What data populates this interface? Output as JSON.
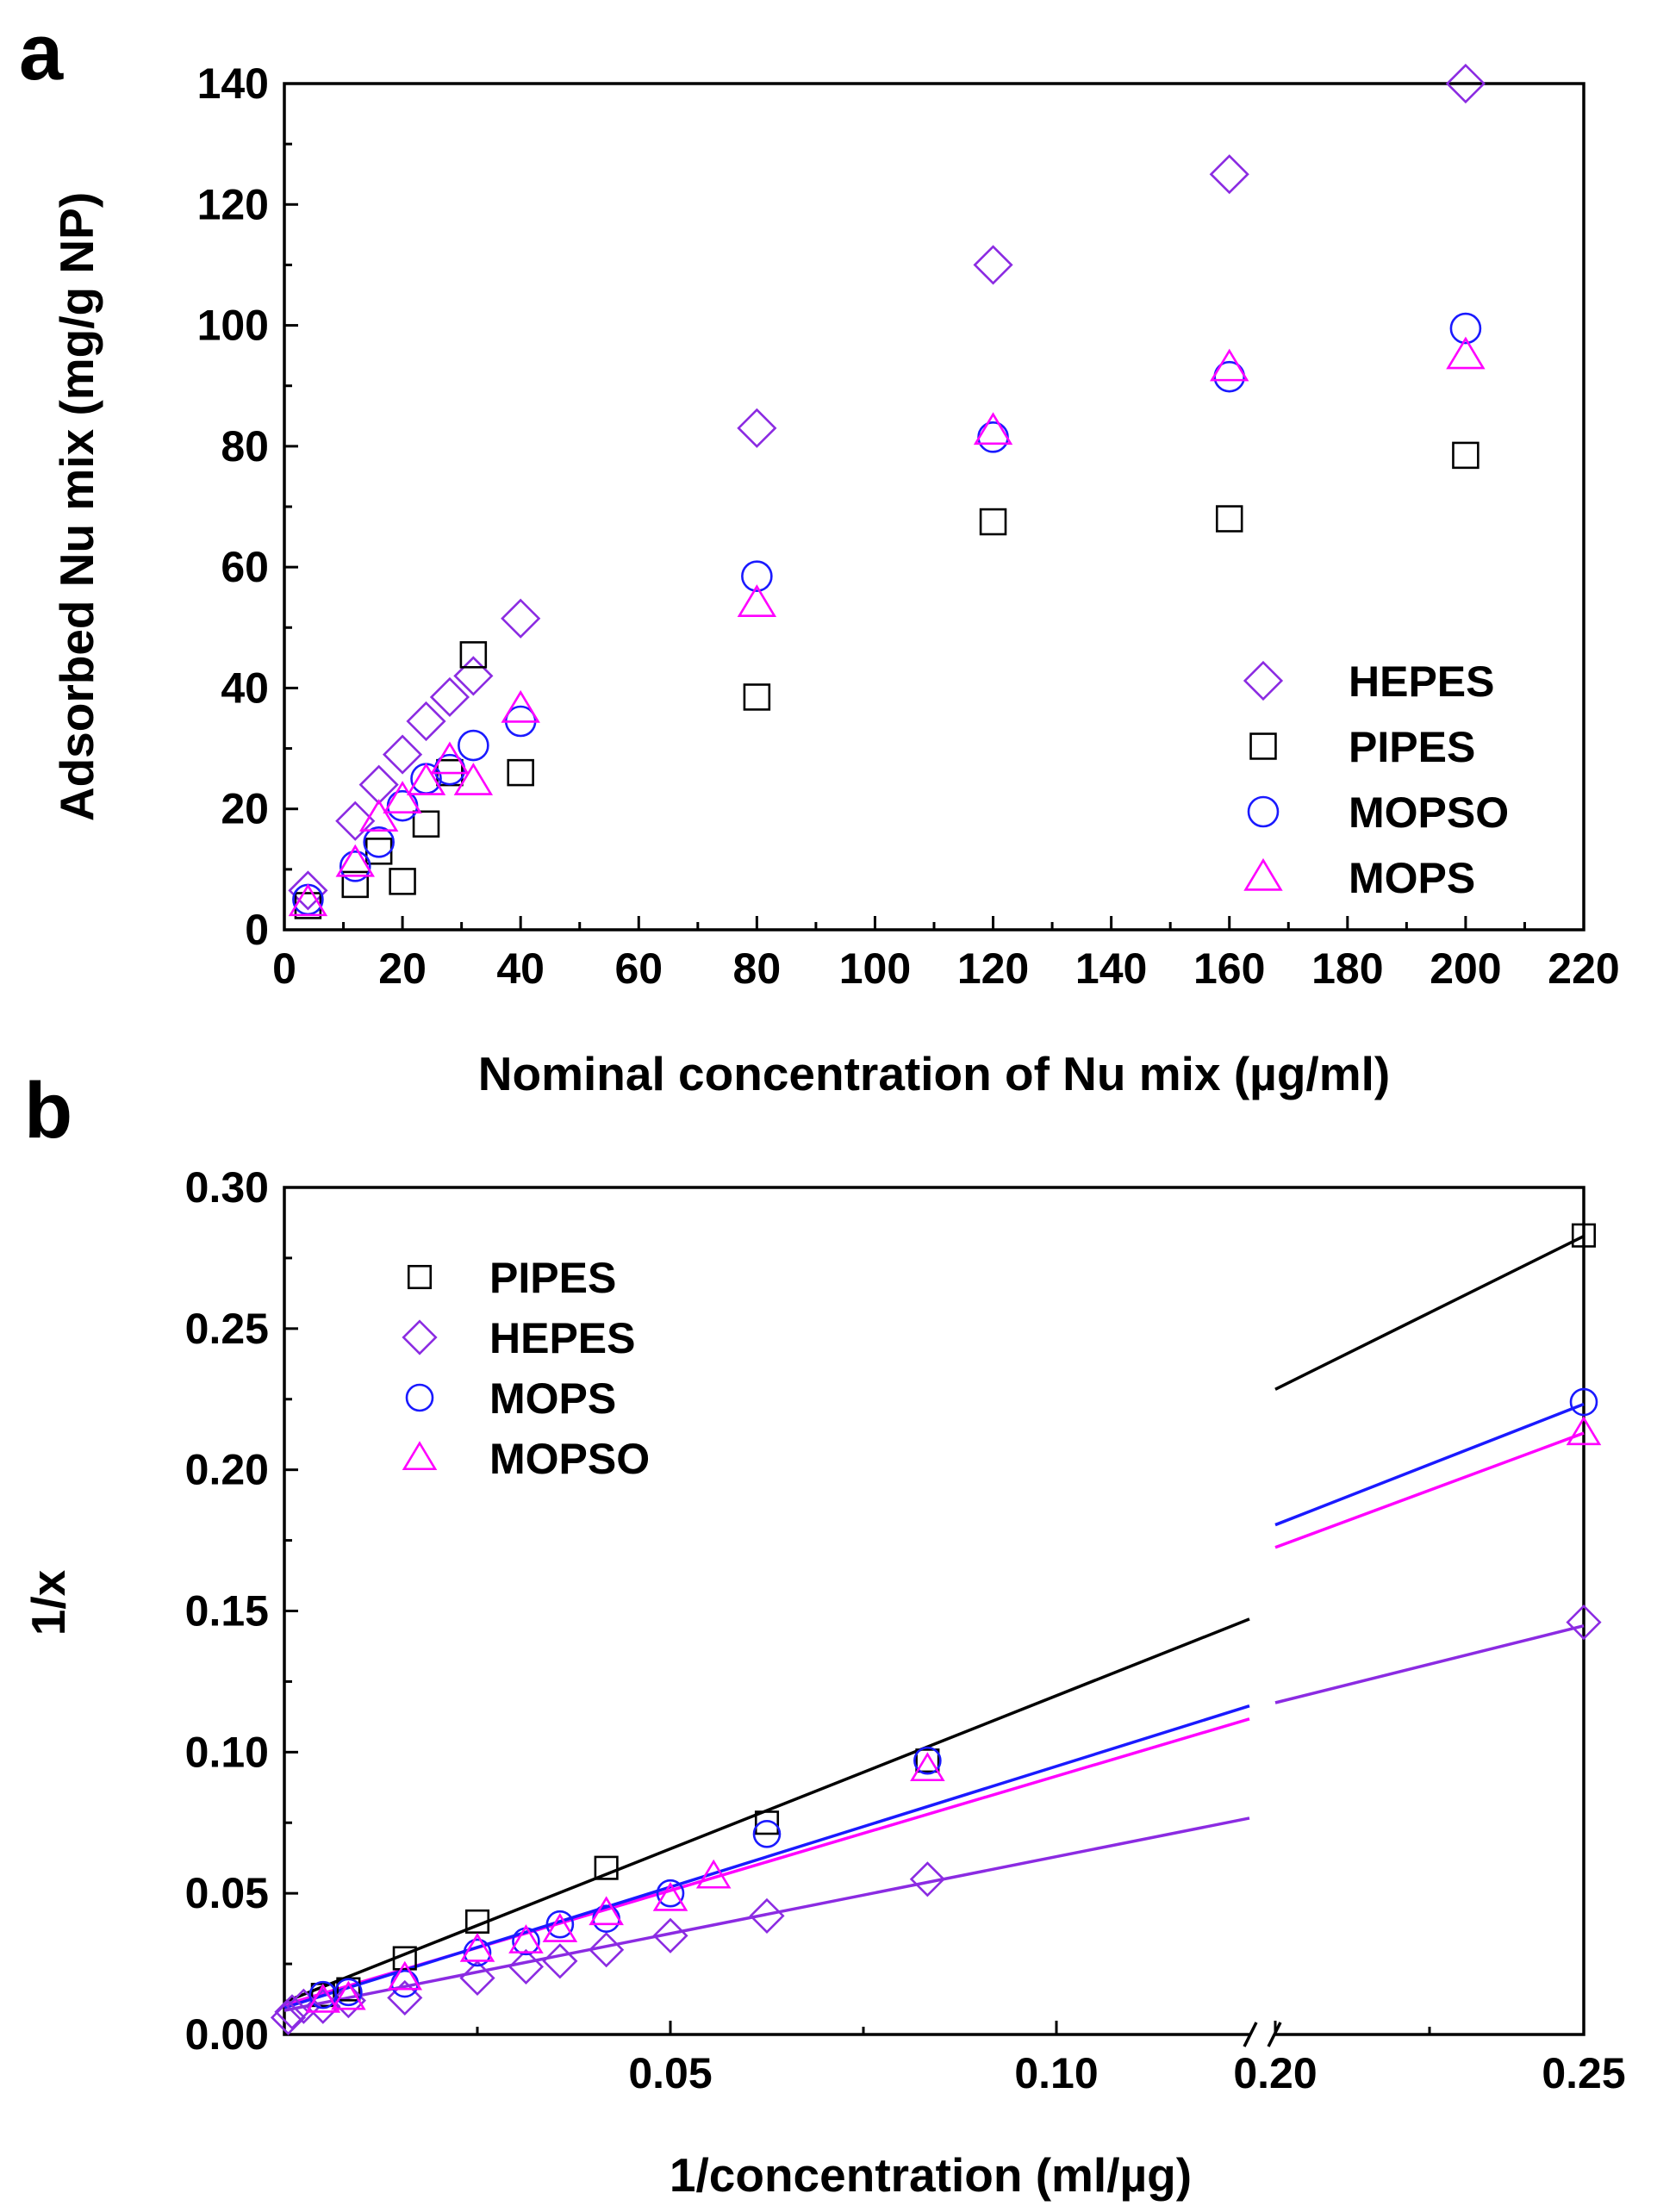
{
  "chart_data": [
    {
      "panel": "a",
      "type": "scatter",
      "xlabel": "Nominal concentration of Nu mix (µg/ml)",
      "ylabel": "Adsorbed Nu mix (mg/g NP)",
      "xlim": [
        0,
        220
      ],
      "ylim": [
        0,
        140
      ],
      "xticks": [
        "0",
        "20",
        "40",
        "60",
        "80",
        "100",
        "120",
        "140",
        "160",
        "180",
        "200",
        "220"
      ],
      "yticks": [
        "0",
        "20",
        "40",
        "60",
        "80",
        "100",
        "120",
        "140"
      ],
      "legend_position": "bottom-right",
      "series": [
        {
          "name": "HEPES",
          "marker": "diamond",
          "color": "#8B2BE2",
          "x": [
            4,
            12,
            16,
            20,
            24,
            28,
            32,
            40,
            80,
            120,
            160,
            200
          ],
          "y": [
            6.5,
            18,
            24,
            29,
            34.5,
            38.5,
            42,
            51.5,
            83,
            110,
            125,
            140
          ]
        },
        {
          "name": "PIPES",
          "marker": "square",
          "color": "#000000",
          "x": [
            4,
            12,
            16,
            20,
            24,
            28,
            32,
            40,
            80,
            120,
            160,
            200
          ],
          "y": [
            4,
            7.5,
            13,
            8,
            17.5,
            26,
            45.5,
            26,
            38.5,
            67.5,
            68,
            78.5
          ]
        },
        {
          "name": "MOPSO",
          "marker": "circle",
          "color": "#1A1AFF",
          "x": [
            4,
            12,
            16,
            20,
            24,
            28,
            32,
            40,
            80,
            120,
            160,
            200
          ],
          "y": [
            5,
            10.5,
            14.5,
            20.5,
            25,
            26.5,
            30.5,
            34.5,
            58.5,
            81.5,
            91.5,
            99.5
          ]
        },
        {
          "name": "MOPS",
          "marker": "triangle",
          "color": "#FF00FF",
          "x": [
            4,
            12,
            16,
            20,
            24,
            28,
            32,
            40,
            80,
            120,
            160,
            200
          ],
          "y": [
            4.5,
            11,
            18.5,
            21.5,
            24.5,
            28,
            24.5,
            36.5,
            54,
            82.5,
            93,
            95
          ]
        }
      ]
    },
    {
      "panel": "b",
      "type": "scatter",
      "xlabel": "1/concentration (ml/µg)",
      "ylabel": "1/x",
      "xlim": [
        0,
        0.25
      ],
      "axis_break": [
        0.125,
        0.2
      ],
      "ylim": [
        0,
        0.3
      ],
      "xticks": [
        "0.05",
        "0.10",
        "0.20",
        "0.25"
      ],
      "yticks": [
        "0.00",
        "0.05",
        "0.10",
        "0.15",
        "0.20",
        "0.25",
        "0.30"
      ],
      "legend_position": "top-left",
      "series": [
        {
          "name": "PIPES",
          "marker": "square",
          "color": "#000000",
          "x": [
            0.005,
            0.0083,
            0.0156,
            0.025,
            0.0417,
            0.0625,
            0.0833,
            0.25
          ],
          "y": [
            0.014,
            0.016,
            0.027,
            0.04,
            0.059,
            0.075,
            0.097,
            0.283
          ],
          "fit": {
            "slope": 1.085,
            "intercept": 0.0115
          }
        },
        {
          "name": "HEPES",
          "marker": "diamond",
          "color": "#8B2BE2",
          "x": [
            0.0005,
            0.001,
            0.0025,
            0.005,
            0.0083,
            0.0156,
            0.025,
            0.0313,
            0.0357,
            0.0417,
            0.05,
            0.0625,
            0.0833,
            0.25
          ],
          "y": [
            0.006,
            0.008,
            0.01,
            0.01,
            0.012,
            0.013,
            0.02,
            0.024,
            0.026,
            0.03,
            0.035,
            0.042,
            0.055,
            0.146
          ],
          "fit": {
            "slope": 0.545,
            "intercept": 0.0085
          }
        },
        {
          "name": "MOPS",
          "marker": "circle",
          "color": "#1A1AFF",
          "x": [
            0.005,
            0.0083,
            0.0156,
            0.025,
            0.0313,
            0.0357,
            0.0417,
            0.05,
            0.0625,
            0.0833,
            0.25
          ],
          "y": [
            0.014,
            0.015,
            0.018,
            0.029,
            0.033,
            0.039,
            0.041,
            0.05,
            0.071,
            0.097,
            0.224
          ],
          "fit": {
            "slope": 0.855,
            "intercept": 0.0095
          }
        },
        {
          "name": "MOPSO",
          "marker": "triangle",
          "color": "#FF00FF",
          "x": [
            0.005,
            0.0083,
            0.0156,
            0.025,
            0.0313,
            0.0357,
            0.0417,
            0.05,
            0.0556,
            0.0833,
            0.25
          ],
          "y": [
            0.012,
            0.013,
            0.02,
            0.03,
            0.033,
            0.037,
            0.043,
            0.048,
            0.056,
            0.094,
            0.213
          ],
          "fit": {
            "slope": 0.81,
            "intercept": 0.0105
          }
        }
      ]
    }
  ]
}
